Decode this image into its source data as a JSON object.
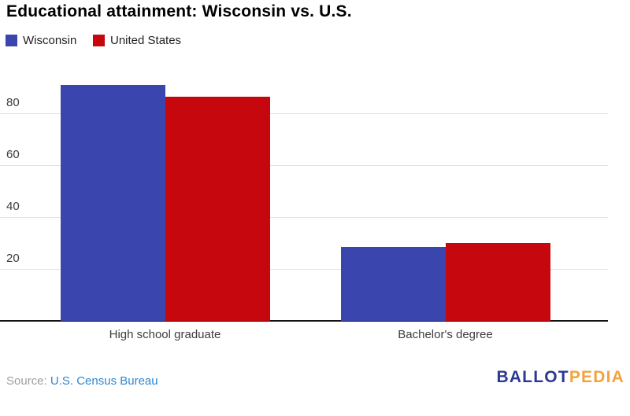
{
  "chart_data": {
    "type": "bar",
    "title": "Educational attainment: Wisconsin vs. U.S.",
    "categories": [
      "High school graduate",
      "Bachelor's degree"
    ],
    "series": [
      {
        "name": "Wisconsin",
        "color": "#3a46ad",
        "values": [
          91,
          28.5
        ]
      },
      {
        "name": "United States",
        "color": "#c6070e",
        "values": [
          86.5,
          30
        ]
      }
    ],
    "xlabel": "",
    "ylabel": "",
    "unit": "percent",
    "yticks": [
      20,
      40,
      60,
      80
    ],
    "ylim": [
      0,
      100
    ],
    "grid": true,
    "legend_position": "top-left",
    "gridline_color": "#e2e2e2",
    "axis_line_color": "#111111"
  },
  "footer": {
    "source_prefix": "Source:",
    "source_link": "U.S. Census Bureau",
    "logo": {
      "part1": "BALLOT",
      "part2": "PEDIA",
      "color1": "#2b3990",
      "color2": "#f2a33c"
    }
  }
}
